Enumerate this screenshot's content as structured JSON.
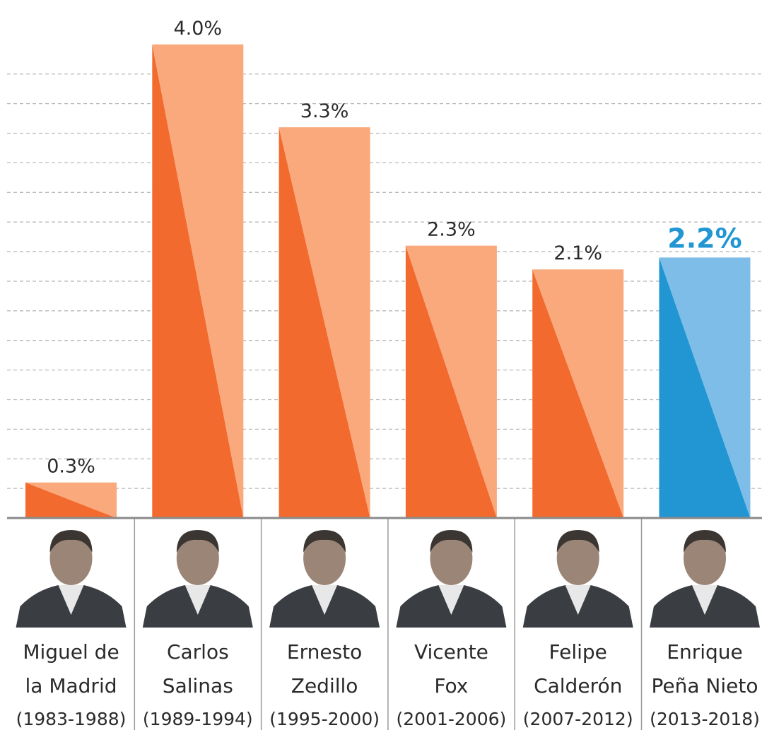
{
  "chart_data": {
    "type": "bar",
    "categories": [
      [
        "Miguel de",
        "la Madrid"
      ],
      [
        "Carlos",
        "Salinas"
      ],
      [
        "Ernesto",
        "Zedillo"
      ],
      [
        "Vicente",
        "Fox"
      ],
      [
        "Felipe",
        "Calderón"
      ],
      [
        "Enrique",
        "Peña Nieto"
      ]
    ],
    "periods": [
      "(1983-1988)",
      "(1989-1994)",
      "(1995-2000)",
      "(2001-2006)",
      "(2007-2012)",
      "(2013-2018)"
    ],
    "values": [
      0.3,
      4.0,
      3.3,
      2.3,
      2.1,
      2.2
    ],
    "value_labels": [
      "0.3%",
      "4.0%",
      "3.3%",
      "2.3%",
      "2.1%",
      "2.2%"
    ],
    "colors": [
      "#f26a2e",
      "#f26a2e",
      "#f26a2e",
      "#f26a2e",
      "#f26a2e",
      "#2196d3"
    ],
    "light_colors": [
      "#f9a97c",
      "#f9a97c",
      "#f9a97c",
      "#f9a97c",
      "#f9a97c",
      "#7dbde8"
    ],
    "highlight": 5,
    "ylim": [
      0,
      4.25
    ],
    "yticks": [
      0.25,
      0.5,
      0.75,
      1.0,
      1.25,
      1.5,
      1.75,
      2.0,
      2.25,
      2.5,
      2.75,
      3.0,
      3.25,
      3.5,
      3.75
    ],
    "grid": true
  }
}
